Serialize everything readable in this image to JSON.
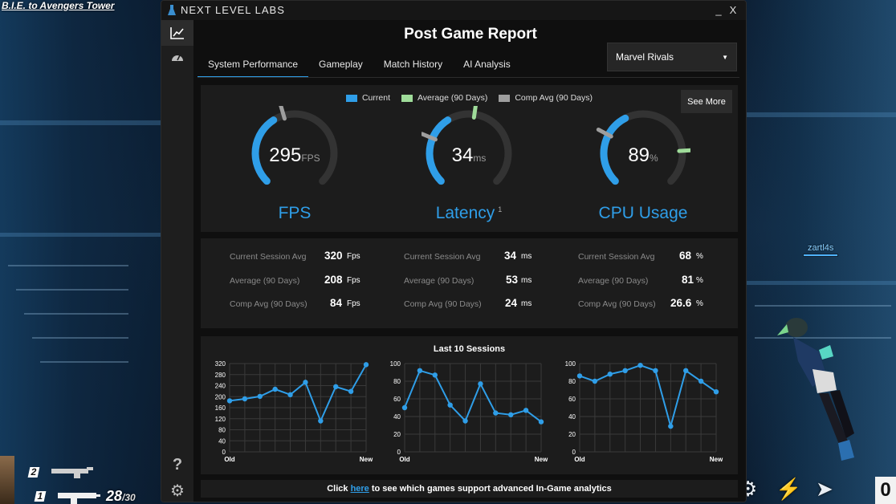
{
  "game": {
    "location": "B.I.E. to Avengers Tower",
    "player_name": "zartl4s",
    "ammo_current": "28",
    "ammo_total": "/30",
    "slot_1": "1",
    "slot_2": "2",
    "ability_count": "0"
  },
  "app": {
    "brand": "NEXT LEVEL LABS",
    "minimize": "_",
    "close": "X",
    "title": "Post Game Report",
    "tabs": [
      "System Performance",
      "Gameplay",
      "Match History",
      "AI Analysis"
    ],
    "selected_game": "Marvel Rivals",
    "accent": "#2f9ee8"
  },
  "legend": {
    "current": "Current",
    "average": "Average (90 Days)",
    "comp_avg": "Comp Avg (90 Days)",
    "colors": {
      "current": "#2f9ee8",
      "average": "#9fdc9a",
      "comp_avg": "#9e9e9e"
    }
  },
  "see_more": "See More",
  "gauges": [
    {
      "label": "FPS",
      "value": "295",
      "unit": "FPS",
      "superscript": "",
      "current_fraction": 0.38,
      "average_fraction": null,
      "comp_fraction": 0.44
    },
    {
      "label": "Latency",
      "value": "34",
      "unit": "ms",
      "superscript": "1",
      "current_fraction": 0.38,
      "average_fraction": 0.53,
      "comp_fraction": 0.25
    },
    {
      "label": "CPU Usage",
      "value": "89",
      "unit": "%",
      "superscript": "",
      "current_fraction": 0.4,
      "average_fraction": 0.82,
      "comp_fraction": 0.27
    }
  ],
  "stats": [
    {
      "rows": [
        {
          "label": "Current Session Avg",
          "value": "320",
          "unit": "Fps"
        },
        {
          "label": "Average (90 Days)",
          "value": "208",
          "unit": "Fps"
        },
        {
          "label": "Comp Avg (90 Days)",
          "value": "84",
          "unit": "Fps"
        }
      ]
    },
    {
      "rows": [
        {
          "label": "Current Session Avg",
          "value": "34",
          "unit": "ms"
        },
        {
          "label": "Average (90 Days)",
          "value": "53",
          "unit": "ms"
        },
        {
          "label": "Comp Avg (90 Days)",
          "value": "24",
          "unit": "ms"
        }
      ]
    },
    {
      "rows": [
        {
          "label": "Current Session Avg",
          "value": "68",
          "unit": "%"
        },
        {
          "label": "Average (90 Days)",
          "value": "81",
          "unit": "%"
        },
        {
          "label": "Comp Avg (90 Days)",
          "value": "26.6",
          "unit": "%"
        }
      ]
    }
  ],
  "sessions_title": "Last 10 Sessions",
  "chart_data": [
    {
      "type": "line",
      "x": [
        "Old",
        "",
        "",
        "",
        "",
        "",
        "",
        "",
        "",
        "New"
      ],
      "yticks": [
        0,
        40,
        80,
        120,
        160,
        200,
        240,
        280,
        320
      ],
      "ylim": [
        0,
        320
      ],
      "series": [
        {
          "values": [
            185,
            192,
            201,
            227,
            207,
            252,
            112,
            236,
            219,
            316
          ],
          "color": "#2f9ee8"
        }
      ]
    },
    {
      "type": "line",
      "x": [
        "Old",
        "",
        "",
        "",
        "",
        "",
        "",
        "",
        "",
        "New"
      ],
      "yticks": [
        0,
        20,
        40,
        60,
        80,
        100
      ],
      "ylim": [
        0,
        100
      ],
      "series": [
        {
          "values": [
            50,
            92,
            87,
            53,
            35,
            77,
            44,
            42,
            47,
            34
          ],
          "color": "#2f9ee8"
        }
      ]
    },
    {
      "type": "line",
      "x": [
        "Old",
        "",
        "",
        "",
        "",
        "",
        "",
        "",
        "",
        "New"
      ],
      "yticks": [
        0,
        20,
        40,
        60,
        80,
        100
      ],
      "ylim": [
        0,
        100
      ],
      "series": [
        {
          "values": [
            86,
            80,
            88,
            92,
            98,
            92,
            29,
            92,
            80,
            68
          ],
          "color": "#2f9ee8"
        }
      ]
    }
  ],
  "footer": {
    "prefix": "Click ",
    "link": "here",
    "suffix": " to see which games support advanced In-Game analytics"
  }
}
